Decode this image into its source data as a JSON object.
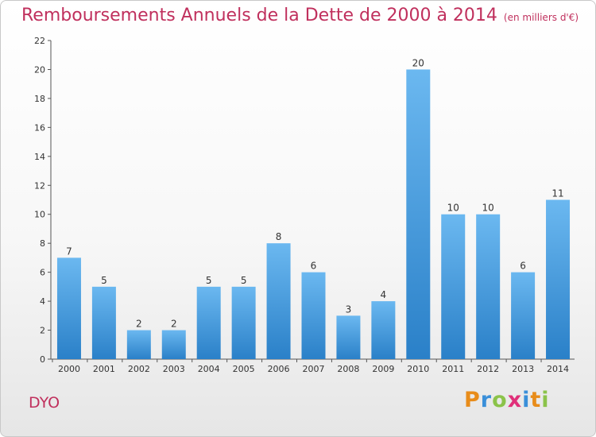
{
  "title": "Remboursements Annuels de la Dette de 2000 à 2014",
  "subtitle": "(en milliers d'€)",
  "place": "DYO",
  "logo": {
    "letters": [
      "P",
      "r",
      "o",
      "x",
      "i",
      "t",
      "i"
    ],
    "colors": [
      "#e88c1a",
      "#3a8fd9",
      "#8bc34a",
      "#e0307a",
      "#3a8fd9",
      "#e88c1a",
      "#8bc34a"
    ]
  },
  "colors": {
    "bar_light": "#6bb8f0",
    "bar_dark": "#2a80c8",
    "title": "#c0305d"
  },
  "chart_data": {
    "type": "bar",
    "categories": [
      "2000",
      "2001",
      "2002",
      "2003",
      "2004",
      "2005",
      "2006",
      "2007",
      "2008",
      "2009",
      "2010",
      "2011",
      "2012",
      "2013",
      "2014"
    ],
    "values": [
      7,
      5,
      2,
      2,
      5,
      5,
      8,
      6,
      3,
      4,
      20,
      10,
      10,
      6,
      11
    ],
    "ylim": [
      0,
      22
    ],
    "yticks": [
      0,
      2,
      4,
      6,
      8,
      10,
      12,
      14,
      16,
      18,
      20,
      22
    ],
    "grid": false,
    "data_labels": true
  }
}
